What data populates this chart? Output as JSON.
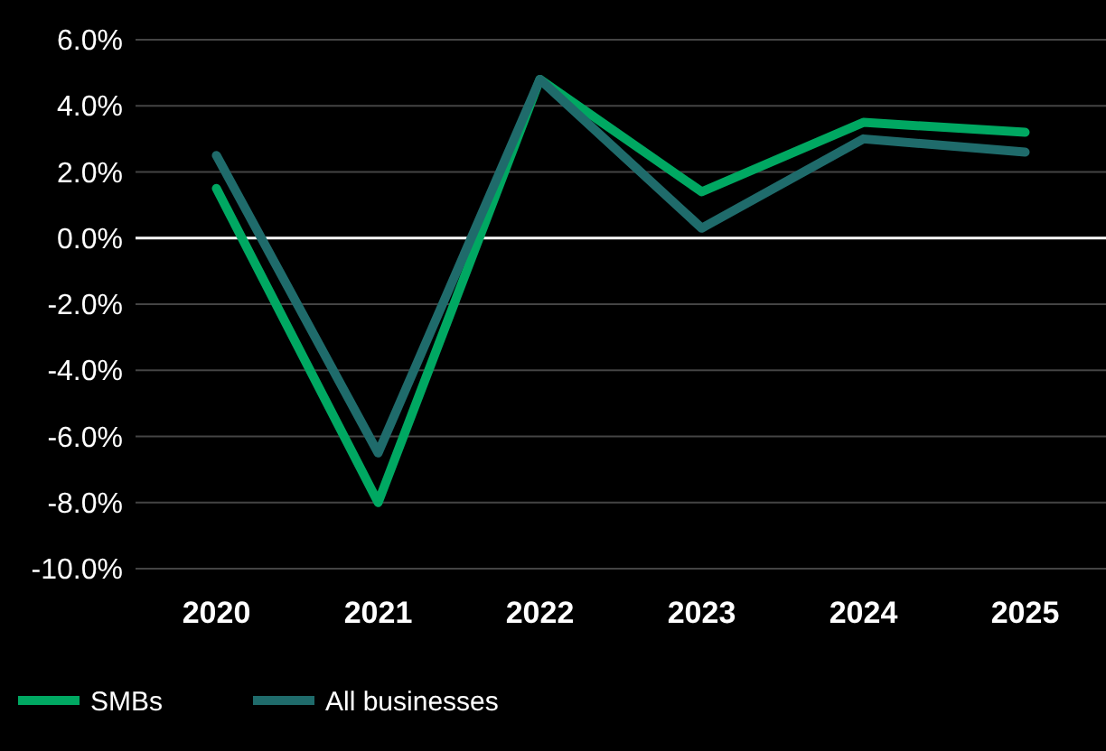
{
  "chart_data": {
    "type": "line",
    "categories": [
      "2020",
      "2021",
      "2022",
      "2023",
      "2024",
      "2025"
    ],
    "series": [
      {
        "name": "SMBs",
        "color": "#00a862",
        "values": [
          1.5,
          -8.0,
          4.8,
          1.4,
          3.5,
          3.2
        ]
      },
      {
        "name": "All businesses",
        "color": "#1f6b6b",
        "values": [
          2.5,
          -6.5,
          4.8,
          0.3,
          3.0,
          2.6
        ]
      }
    ],
    "ylim": [
      -10,
      6
    ],
    "yticks": [
      {
        "value": -10,
        "label": "-10.0%"
      },
      {
        "value": -8,
        "label": "-8.0%"
      },
      {
        "value": -6,
        "label": "-6.0%"
      },
      {
        "value": -4,
        "label": "-4.0%"
      },
      {
        "value": -2,
        "label": "-2.0%"
      },
      {
        "value": 0,
        "label": "0.0%"
      },
      {
        "value": 2,
        "label": "2.0%"
      },
      {
        "value": 4,
        "label": "4.0%"
      },
      {
        "value": 6,
        "label": "6.0%"
      }
    ],
    "grid": "y",
    "legend": "bottom",
    "marker": "none",
    "line_style": "solid",
    "ref_lines": [
      {
        "axis": "y",
        "value": 0,
        "color": "#ffffff"
      }
    ]
  }
}
